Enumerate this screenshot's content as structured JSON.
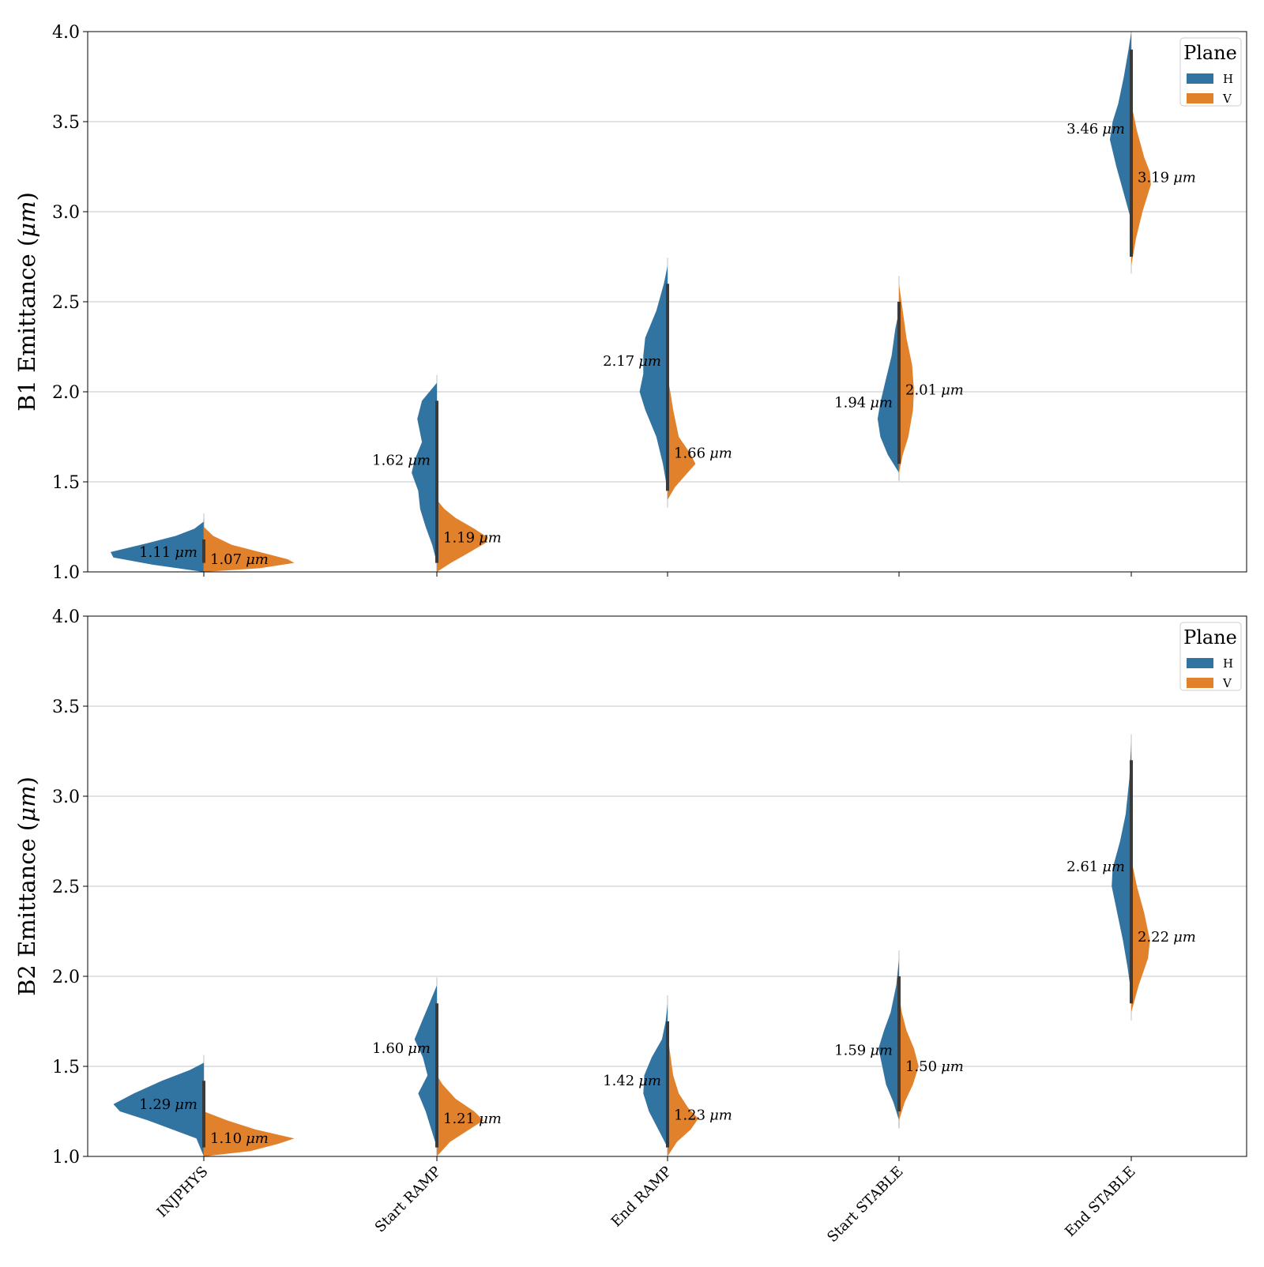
{
  "chart_data": [
    {
      "type": "violin",
      "ylabel": "B1 Emittance (μm)",
      "ylabel_prefix": "B1 Emittance (",
      "ylabel_unit": "μm",
      "ylabel_suffix": ")",
      "ylim": [
        1.0,
        4.0
      ],
      "yticks": [
        "1.0",
        "1.5",
        "2.0",
        "2.5",
        "3.0",
        "3.5",
        "4.0"
      ],
      "grid": true,
      "categories": [
        "INJPHYS",
        "Start RAMP",
        "End RAMP",
        "Start STABLE",
        "End STABLE"
      ],
      "legend": {
        "title": "Plane",
        "placement": "top-right",
        "entries": [
          "H",
          "V"
        ]
      },
      "series": [
        {
          "name": "H",
          "color": "#3274a1",
          "median_labels": [
            "1.11",
            "1.62",
            "2.17",
            "1.94",
            "3.46"
          ],
          "medians": [
            1.11,
            1.62,
            2.17,
            1.94,
            3.46
          ],
          "range": [
            [
              1.0,
              1.28
            ],
            [
              1.05,
              2.05
            ],
            [
              1.45,
              2.7
            ],
            [
              1.55,
              2.45
            ],
            [
              2.95,
              4.0
            ]
          ],
          "profiles": [
            [
              [
                1.0,
                0.0
              ],
              [
                1.04,
                0.55
              ],
              [
                1.08,
                0.97
              ],
              [
                1.11,
                1.0
              ],
              [
                1.16,
                0.6
              ],
              [
                1.2,
                0.3
              ],
              [
                1.24,
                0.1
              ],
              [
                1.28,
                0.0
              ]
            ],
            [
              [
                1.05,
                0.0
              ],
              [
                1.15,
                0.05
              ],
              [
                1.25,
                0.12
              ],
              [
                1.35,
                0.18
              ],
              [
                1.45,
                0.2
              ],
              [
                1.55,
                0.27
              ],
              [
                1.62,
                0.24
              ],
              [
                1.72,
                0.16
              ],
              [
                1.85,
                0.21
              ],
              [
                1.95,
                0.16
              ],
              [
                2.05,
                0.0
              ]
            ],
            [
              [
                1.45,
                0.0
              ],
              [
                1.6,
                0.05
              ],
              [
                1.75,
                0.12
              ],
              [
                1.9,
                0.24
              ],
              [
                2.0,
                0.3
              ],
              [
                2.1,
                0.26
              ],
              [
                2.2,
                0.26
              ],
              [
                2.3,
                0.24
              ],
              [
                2.45,
                0.12
              ],
              [
                2.6,
                0.04
              ],
              [
                2.7,
                0.0
              ]
            ],
            [
              [
                1.55,
                0.0
              ],
              [
                1.65,
                0.12
              ],
              [
                1.75,
                0.2
              ],
              [
                1.85,
                0.23
              ],
              [
                1.94,
                0.2
              ],
              [
                2.05,
                0.15
              ],
              [
                2.2,
                0.08
              ],
              [
                2.35,
                0.04
              ],
              [
                2.45,
                0.0
              ]
            ],
            [
              [
                2.95,
                0.0
              ],
              [
                3.1,
                0.08
              ],
              [
                3.25,
                0.16
              ],
              [
                3.4,
                0.23
              ],
              [
                3.5,
                0.2
              ],
              [
                3.6,
                0.14
              ],
              [
                3.75,
                0.08
              ],
              [
                3.9,
                0.03
              ],
              [
                4.0,
                0.0
              ]
            ]
          ]
        },
        {
          "name": "V",
          "color": "#e1812c",
          "median_labels": [
            "1.07",
            "1.19",
            "1.66",
            "2.01",
            "3.19"
          ],
          "medians": [
            1.07,
            1.19,
            1.66,
            2.01,
            3.19
          ],
          "range": [
            [
              1.0,
              1.25
            ],
            [
              1.0,
              1.4
            ],
            [
              1.4,
              2.08
            ],
            [
              1.55,
              2.6
            ],
            [
              2.7,
              3.6
            ]
          ],
          "profiles": [
            [
              [
                1.0,
                0.0
              ],
              [
                1.02,
                0.6
              ],
              [
                1.05,
                0.97
              ],
              [
                1.07,
                0.9
              ],
              [
                1.11,
                0.6
              ],
              [
                1.15,
                0.3
              ],
              [
                1.2,
                0.1
              ],
              [
                1.25,
                0.0
              ]
            ],
            [
              [
                1.0,
                0.0
              ],
              [
                1.05,
                0.15
              ],
              [
                1.1,
                0.32
              ],
              [
                1.16,
                0.52
              ],
              [
                1.19,
                0.55
              ],
              [
                1.24,
                0.4
              ],
              [
                1.3,
                0.2
              ],
              [
                1.35,
                0.08
              ],
              [
                1.4,
                0.0
              ]
            ],
            [
              [
                1.4,
                0.0
              ],
              [
                1.47,
                0.08
              ],
              [
                1.53,
                0.18
              ],
              [
                1.6,
                0.3
              ],
              [
                1.66,
                0.24
              ],
              [
                1.75,
                0.12
              ],
              [
                1.9,
                0.06
              ],
              [
                2.0,
                0.03
              ],
              [
                2.08,
                0.0
              ]
            ],
            [
              [
                1.55,
                0.0
              ],
              [
                1.65,
                0.04
              ],
              [
                1.75,
                0.1
              ],
              [
                1.9,
                0.15
              ],
              [
                2.01,
                0.16
              ],
              [
                2.15,
                0.14
              ],
              [
                2.3,
                0.08
              ],
              [
                2.45,
                0.04
              ],
              [
                2.6,
                0.0
              ]
            ],
            [
              [
                2.7,
                0.0
              ],
              [
                2.85,
                0.05
              ],
              [
                3.0,
                0.12
              ],
              [
                3.15,
                0.21
              ],
              [
                3.22,
                0.2
              ],
              [
                3.3,
                0.14
              ],
              [
                3.45,
                0.06
              ],
              [
                3.6,
                0.0
              ]
            ]
          ]
        }
      ]
    },
    {
      "type": "violin",
      "ylabel": "B2 Emittance (μm)",
      "ylabel_prefix": "B2 Emittance (",
      "ylabel_unit": "μm",
      "ylabel_suffix": ")",
      "ylim": [
        1.0,
        4.0
      ],
      "yticks": [
        "1.0",
        "1.5",
        "2.0",
        "2.5",
        "3.0",
        "3.5",
        "4.0"
      ],
      "grid": true,
      "categories": [
        "INJPHYS",
        "Start RAMP",
        "End RAMP",
        "Start STABLE",
        "End STABLE"
      ],
      "legend": {
        "title": "Plane",
        "placement": "top-right",
        "entries": [
          "H",
          "V"
        ]
      },
      "series": [
        {
          "name": "H",
          "color": "#3274a1",
          "median_labels": [
            "1.29",
            "1.60",
            "1.42",
            "1.59",
            "2.61"
          ],
          "medians": [
            1.29,
            1.6,
            1.42,
            1.59,
            2.61
          ],
          "range": [
            [
              1.0,
              1.52
            ],
            [
              1.05,
              1.95
            ],
            [
              1.05,
              1.85
            ],
            [
              1.2,
              2.1
            ],
            [
              1.9,
              3.3
            ]
          ],
          "profiles": [
            [
              [
                1.0,
                0.0
              ],
              [
                1.1,
                0.08
              ],
              [
                1.2,
                0.6
              ],
              [
                1.25,
                0.9
              ],
              [
                1.29,
                0.97
              ],
              [
                1.35,
                0.75
              ],
              [
                1.42,
                0.45
              ],
              [
                1.48,
                0.15
              ],
              [
                1.52,
                0.0
              ]
            ],
            [
              [
                1.05,
                0.0
              ],
              [
                1.15,
                0.06
              ],
              [
                1.25,
                0.12
              ],
              [
                1.35,
                0.2
              ],
              [
                1.45,
                0.1
              ],
              [
                1.55,
                0.15
              ],
              [
                1.65,
                0.24
              ],
              [
                1.75,
                0.16
              ],
              [
                1.85,
                0.08
              ],
              [
                1.95,
                0.0
              ]
            ],
            [
              [
                1.05,
                0.0
              ],
              [
                1.15,
                0.1
              ],
              [
                1.25,
                0.2
              ],
              [
                1.35,
                0.26
              ],
              [
                1.45,
                0.25
              ],
              [
                1.55,
                0.17
              ],
              [
                1.65,
                0.06
              ],
              [
                1.75,
                0.02
              ],
              [
                1.85,
                0.0
              ]
            ],
            [
              [
                1.2,
                0.0
              ],
              [
                1.3,
                0.06
              ],
              [
                1.4,
                0.14
              ],
              [
                1.5,
                0.18
              ],
              [
                1.6,
                0.22
              ],
              [
                1.7,
                0.16
              ],
              [
                1.8,
                0.09
              ],
              [
                1.95,
                0.03
              ],
              [
                2.1,
                0.0
              ]
            ],
            [
              [
                1.9,
                0.0
              ],
              [
                2.05,
                0.04
              ],
              [
                2.2,
                0.09
              ],
              [
                2.35,
                0.15
              ],
              [
                2.5,
                0.21
              ],
              [
                2.6,
                0.2
              ],
              [
                2.75,
                0.12
              ],
              [
                2.9,
                0.06
              ],
              [
                3.1,
                0.02
              ],
              [
                3.3,
                0.0
              ]
            ]
          ]
        },
        {
          "name": "V",
          "color": "#e1812c",
          "median_labels": [
            "1.10",
            "1.21",
            "1.23",
            "1.50",
            "2.22"
          ],
          "medians": [
            1.1,
            1.21,
            1.23,
            1.5,
            2.22
          ],
          "range": [
            [
              1.0,
              1.25
            ],
            [
              1.0,
              1.45
            ],
            [
              1.0,
              1.7
            ],
            [
              1.2,
              1.9
            ],
            [
              1.8,
              2.65
            ]
          ],
          "profiles": [
            [
              [
                1.0,
                0.0
              ],
              [
                1.03,
                0.5
              ],
              [
                1.07,
                0.8
              ],
              [
                1.1,
                0.97
              ],
              [
                1.15,
                0.55
              ],
              [
                1.2,
                0.25
              ],
              [
                1.25,
                0.0
              ]
            ],
            [
              [
                1.0,
                0.0
              ],
              [
                1.08,
                0.14
              ],
              [
                1.15,
                0.35
              ],
              [
                1.2,
                0.5
              ],
              [
                1.25,
                0.4
              ],
              [
                1.32,
                0.2
              ],
              [
                1.4,
                0.06
              ],
              [
                1.45,
                0.0
              ]
            ],
            [
              [
                1.0,
                0.0
              ],
              [
                1.08,
                0.1
              ],
              [
                1.15,
                0.25
              ],
              [
                1.21,
                0.33
              ],
              [
                1.27,
                0.22
              ],
              [
                1.35,
                0.12
              ],
              [
                1.45,
                0.06
              ],
              [
                1.6,
                0.02
              ],
              [
                1.7,
                0.0
              ]
            ],
            [
              [
                1.2,
                0.0
              ],
              [
                1.3,
                0.06
              ],
              [
                1.4,
                0.15
              ],
              [
                1.5,
                0.21
              ],
              [
                1.6,
                0.16
              ],
              [
                1.7,
                0.08
              ],
              [
                1.8,
                0.03
              ],
              [
                1.9,
                0.0
              ]
            ],
            [
              [
                1.8,
                0.0
              ],
              [
                1.95,
                0.08
              ],
              [
                2.1,
                0.18
              ],
              [
                2.2,
                0.2
              ],
              [
                2.35,
                0.14
              ],
              [
                2.5,
                0.06
              ],
              [
                2.65,
                0.0
              ]
            ]
          ]
        }
      ]
    }
  ]
}
